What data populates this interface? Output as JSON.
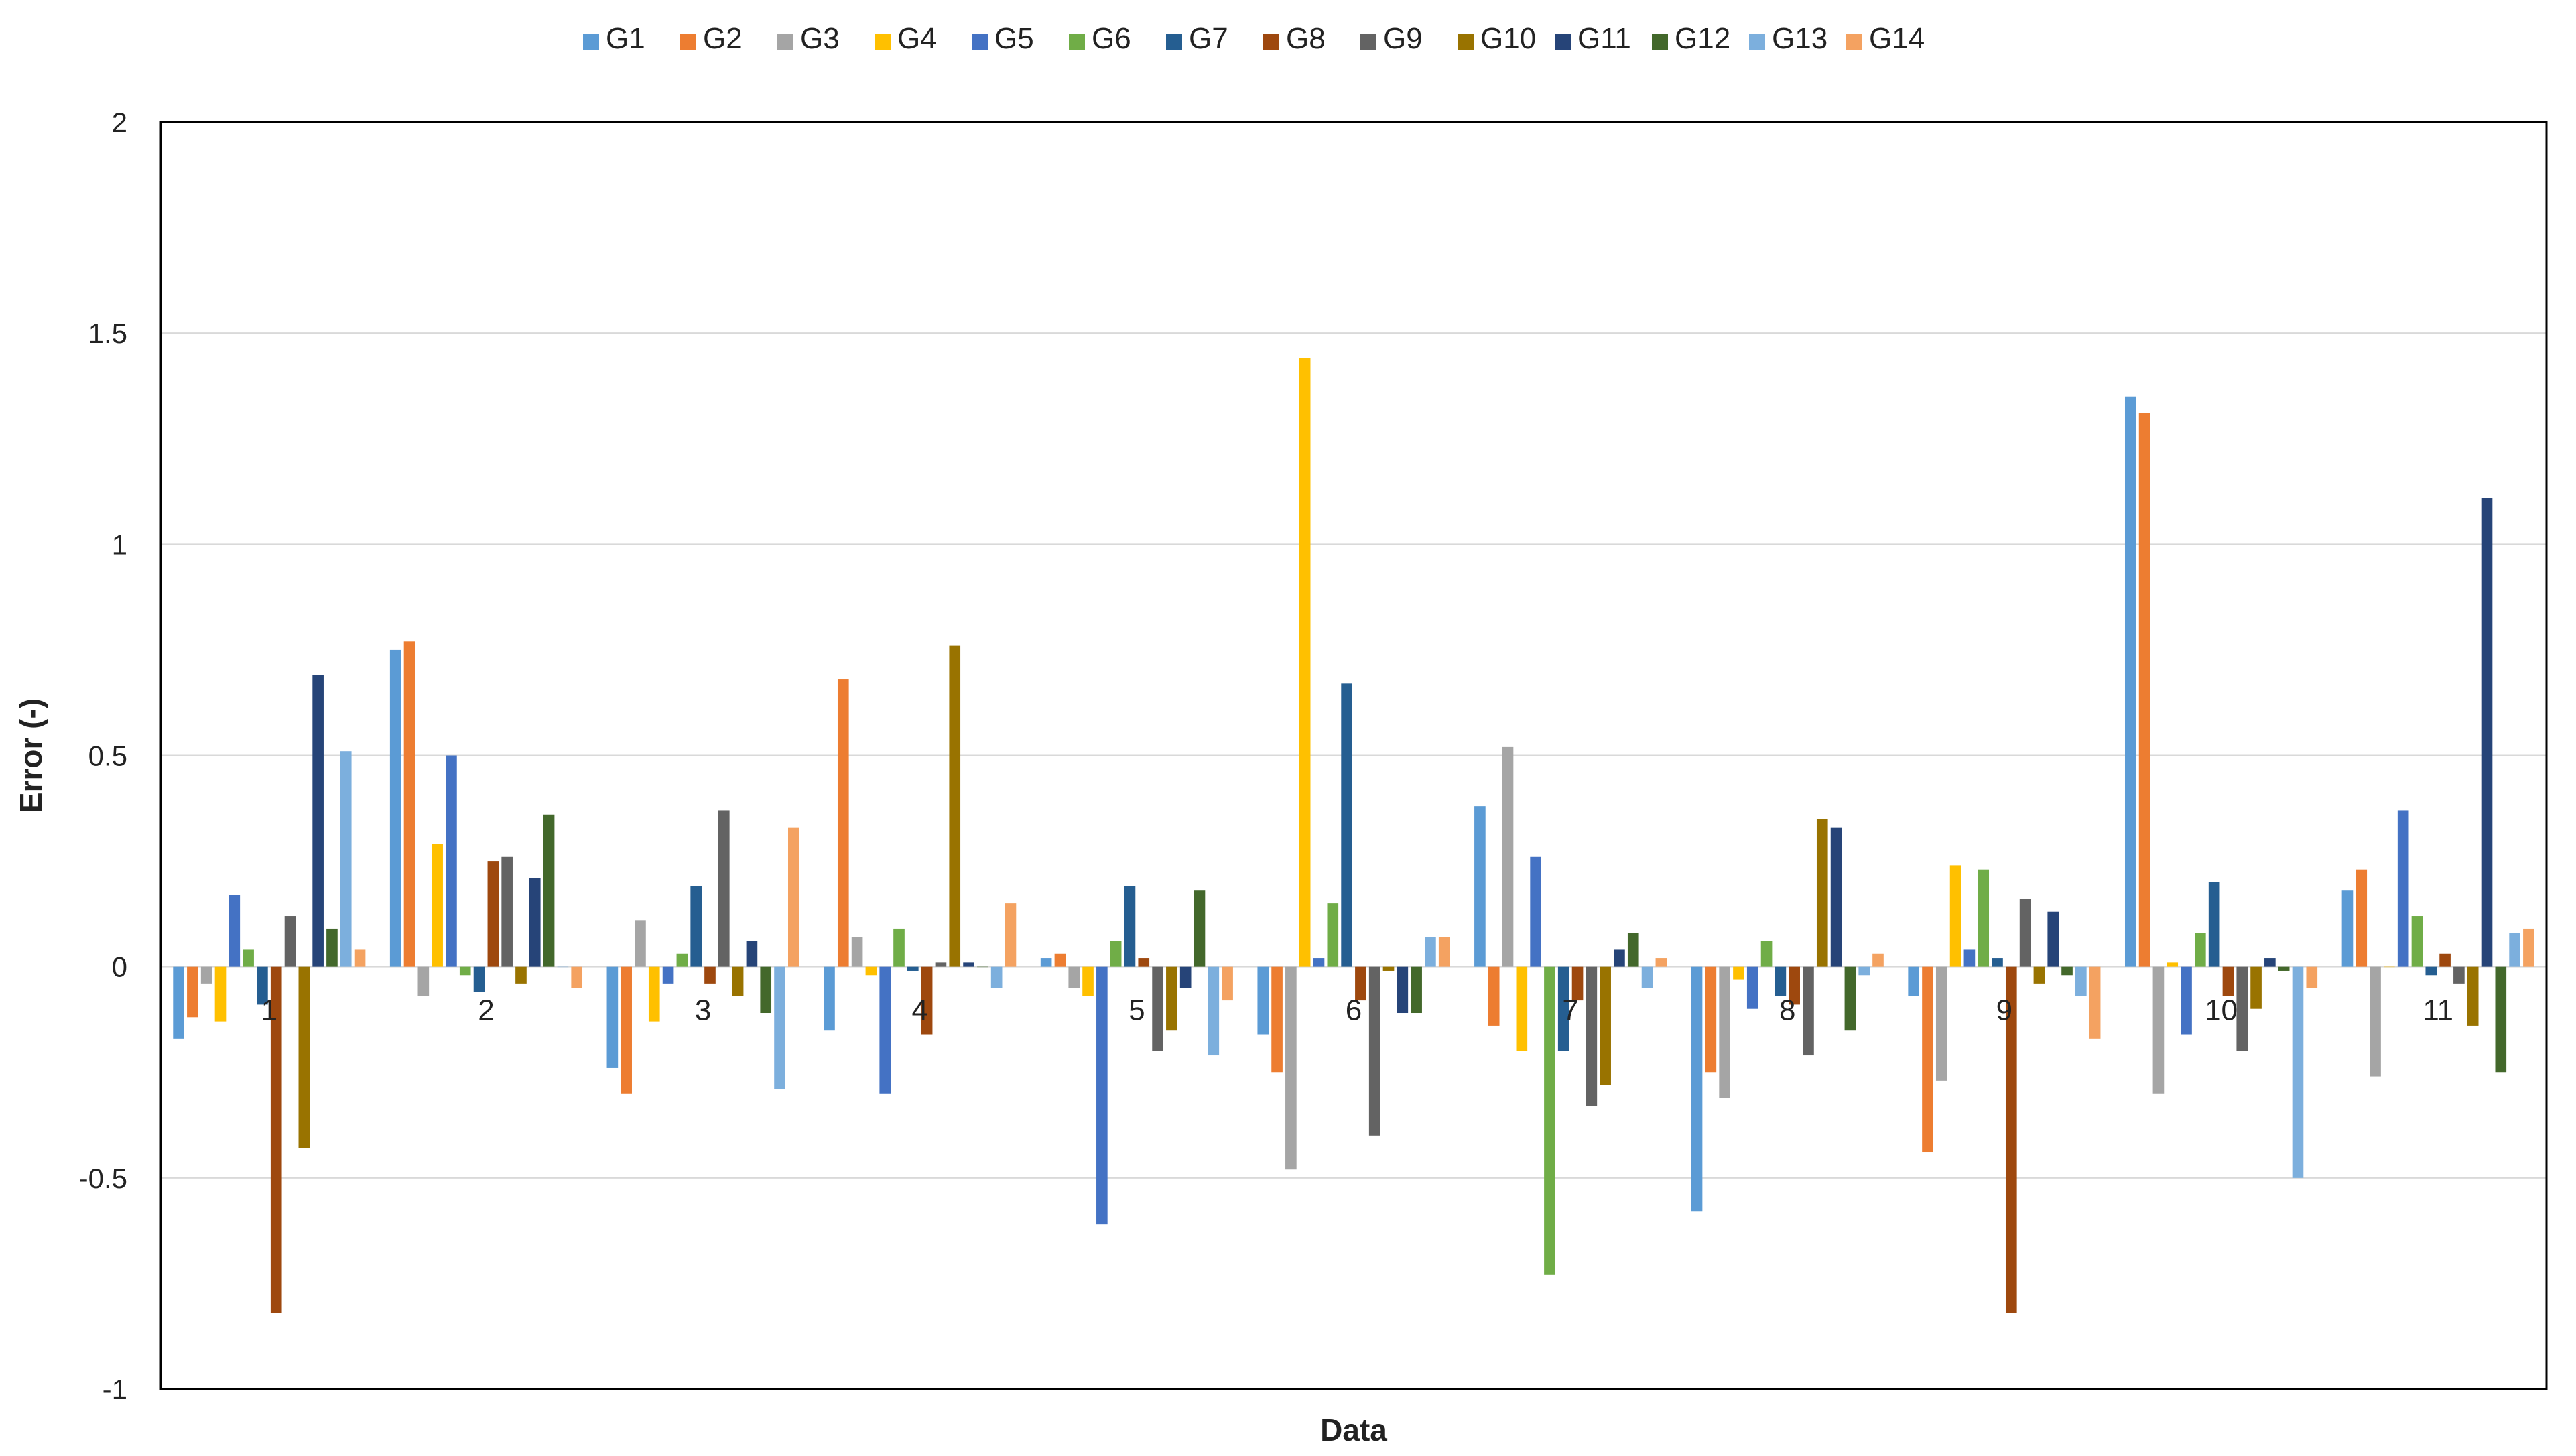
{
  "chart_data": {
    "type": "bar",
    "title": "",
    "xlabel": "Data",
    "ylabel": "Error (-)",
    "ylim": [
      -1,
      2
    ],
    "yticks": [
      "2",
      "1.5",
      "1",
      "0.5",
      "0",
      "-0.5",
      "-1"
    ],
    "grid": true,
    "legend_position": "top",
    "categories": [
      "1",
      "2",
      "3",
      "4",
      "5",
      "6",
      "7",
      "8",
      "9",
      "10",
      "11"
    ],
    "series": [
      {
        "name": "G1",
        "color": "#5B9BD5",
        "values": [
          -0.17,
          0.75,
          -0.24,
          -0.15,
          0.02,
          -0.16,
          0.38,
          -0.58,
          -0.07,
          1.35,
          0.18
        ]
      },
      {
        "name": "G2",
        "color": "#ED7D31",
        "values": [
          -0.12,
          0.77,
          -0.3,
          0.68,
          0.03,
          -0.25,
          -0.14,
          -0.25,
          -0.44,
          1.31,
          0.23
        ]
      },
      {
        "name": "G3",
        "color": "#A5A5A5",
        "values": [
          -0.04,
          -0.07,
          0.11,
          0.07,
          -0.05,
          -0.48,
          0.52,
          -0.31,
          -0.27,
          -0.3,
          -0.26
        ]
      },
      {
        "name": "G4",
        "color": "#FFC000",
        "values": [
          -0.13,
          0.29,
          -0.13,
          -0.02,
          -0.07,
          1.44,
          -0.2,
          -0.03,
          0.24,
          0.01,
          0.0
        ]
      },
      {
        "name": "G5",
        "color": "#4472C4",
        "values": [
          0.17,
          0.5,
          -0.04,
          -0.3,
          -0.61,
          0.02,
          0.26,
          -0.1,
          0.04,
          -0.16,
          0.37
        ]
      },
      {
        "name": "G6",
        "color": "#70AD47",
        "values": [
          0.04,
          -0.02,
          0.03,
          0.09,
          0.06,
          0.15,
          -0.73,
          0.06,
          0.23,
          0.08,
          0.12
        ]
      },
      {
        "name": "G7",
        "color": "#255E91",
        "values": [
          -0.09,
          -0.06,
          0.19,
          -0.01,
          0.19,
          0.67,
          -0.2,
          -0.07,
          0.02,
          0.2,
          -0.02
        ]
      },
      {
        "name": "G8",
        "color": "#9E480E",
        "values": [
          -0.82,
          0.25,
          -0.04,
          -0.16,
          0.02,
          -0.08,
          -0.08,
          -0.09,
          -0.82,
          -0.07,
          0.03
        ]
      },
      {
        "name": "G9",
        "color": "#636363",
        "values": [
          0.12,
          0.26,
          0.37,
          0.01,
          -0.2,
          -0.4,
          -0.33,
          -0.21,
          0.16,
          -0.2,
          -0.04
        ]
      },
      {
        "name": "G10",
        "color": "#997300",
        "values": [
          -0.43,
          -0.04,
          -0.07,
          0.76,
          -0.15,
          -0.01,
          -0.28,
          0.35,
          -0.04,
          -0.1,
          -0.14
        ]
      },
      {
        "name": "G11",
        "color": "#264478",
        "values": [
          0.69,
          0.21,
          0.06,
          0.01,
          -0.05,
          -0.11,
          0.04,
          0.33,
          0.13,
          0.02,
          1.11
        ]
      },
      {
        "name": "G12",
        "color": "#43682B",
        "values": [
          0.09,
          0.36,
          -0.11,
          0.0,
          0.18,
          -0.11,
          0.08,
          -0.15,
          -0.02,
          -0.01,
          -0.25
        ]
      },
      {
        "name": "G13",
        "color": "#7CAFDD",
        "values": [
          0.51,
          0.0,
          -0.29,
          -0.05,
          -0.21,
          0.07,
          -0.05,
          -0.02,
          -0.07,
          -0.5,
          0.08
        ]
      },
      {
        "name": "G14",
        "color": "#F4A261",
        "values": [
          0.04,
          -0.05,
          0.33,
          0.15,
          -0.08,
          0.07,
          0.02,
          0.03,
          -0.17,
          -0.05,
          0.09
        ]
      }
    ]
  }
}
